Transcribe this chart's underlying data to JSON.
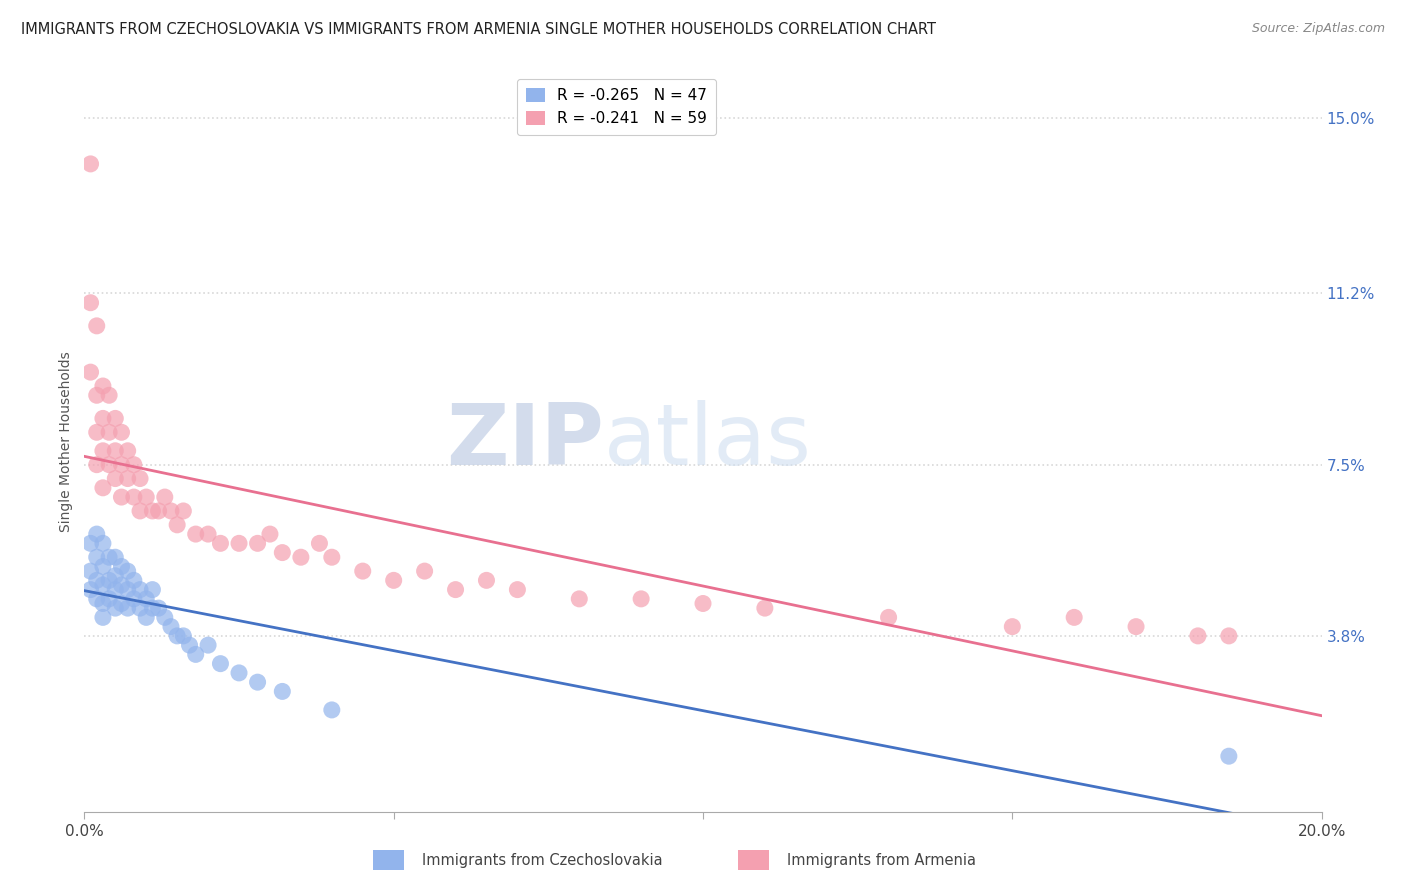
{
  "title": "IMMIGRANTS FROM CZECHOSLOVAKIA VS IMMIGRANTS FROM ARMENIA SINGLE MOTHER HOUSEHOLDS CORRELATION CHART",
  "source": "Source: ZipAtlas.com",
  "ylabel": "Single Mother Households",
  "xlim": [
    0.0,
    0.2
  ],
  "ylim": [
    0.0,
    0.16
  ],
  "right_yticks": [
    0.038,
    0.075,
    0.112,
    0.15
  ],
  "right_yticklabels": [
    "3.8%",
    "7.5%",
    "11.2%",
    "15.0%"
  ],
  "legend_r1": "R = -0.265",
  "legend_n1": "N = 47",
  "legend_r2": "R = -0.241",
  "legend_n2": "N = 59",
  "color_czech": "#92B4EC",
  "color_armenia": "#F4A0B0",
  "trendline_color_czech": "#4472C4",
  "trendline_color_armenia": "#E87090",
  "background_color": "#ffffff",
  "grid_color": "#d8d8d8",
  "scatter_czech_x": [
    0.001,
    0.001,
    0.001,
    0.002,
    0.002,
    0.002,
    0.002,
    0.003,
    0.003,
    0.003,
    0.003,
    0.003,
    0.004,
    0.004,
    0.004,
    0.005,
    0.005,
    0.005,
    0.005,
    0.006,
    0.006,
    0.006,
    0.007,
    0.007,
    0.007,
    0.008,
    0.008,
    0.009,
    0.009,
    0.01,
    0.01,
    0.011,
    0.011,
    0.012,
    0.013,
    0.014,
    0.015,
    0.016,
    0.017,
    0.018,
    0.02,
    0.022,
    0.025,
    0.028,
    0.032,
    0.04,
    0.185
  ],
  "scatter_czech_y": [
    0.058,
    0.052,
    0.048,
    0.06,
    0.055,
    0.05,
    0.046,
    0.058,
    0.053,
    0.049,
    0.045,
    0.042,
    0.055,
    0.05,
    0.046,
    0.055,
    0.051,
    0.048,
    0.044,
    0.053,
    0.049,
    0.045,
    0.052,
    0.048,
    0.044,
    0.05,
    0.046,
    0.048,
    0.044,
    0.046,
    0.042,
    0.048,
    0.044,
    0.044,
    0.042,
    0.04,
    0.038,
    0.038,
    0.036,
    0.034,
    0.036,
    0.032,
    0.03,
    0.028,
    0.026,
    0.022,
    0.012
  ],
  "scatter_armenia_x": [
    0.001,
    0.001,
    0.001,
    0.002,
    0.002,
    0.002,
    0.002,
    0.003,
    0.003,
    0.003,
    0.003,
    0.004,
    0.004,
    0.004,
    0.005,
    0.005,
    0.005,
    0.006,
    0.006,
    0.006,
    0.007,
    0.007,
    0.008,
    0.008,
    0.009,
    0.009,
    0.01,
    0.011,
    0.012,
    0.013,
    0.014,
    0.015,
    0.016,
    0.018,
    0.02,
    0.022,
    0.025,
    0.028,
    0.03,
    0.032,
    0.035,
    0.038,
    0.04,
    0.045,
    0.05,
    0.055,
    0.06,
    0.065,
    0.07,
    0.08,
    0.09,
    0.1,
    0.11,
    0.13,
    0.15,
    0.16,
    0.17,
    0.18,
    0.185
  ],
  "scatter_armenia_y": [
    0.14,
    0.11,
    0.095,
    0.105,
    0.09,
    0.082,
    0.075,
    0.092,
    0.085,
    0.078,
    0.07,
    0.09,
    0.082,
    0.075,
    0.085,
    0.078,
    0.072,
    0.082,
    0.075,
    0.068,
    0.078,
    0.072,
    0.075,
    0.068,
    0.072,
    0.065,
    0.068,
    0.065,
    0.065,
    0.068,
    0.065,
    0.062,
    0.065,
    0.06,
    0.06,
    0.058,
    0.058,
    0.058,
    0.06,
    0.056,
    0.055,
    0.058,
    0.055,
    0.052,
    0.05,
    0.052,
    0.048,
    0.05,
    0.048,
    0.046,
    0.046,
    0.045,
    0.044,
    0.042,
    0.04,
    0.042,
    0.04,
    0.038,
    0.038
  ]
}
